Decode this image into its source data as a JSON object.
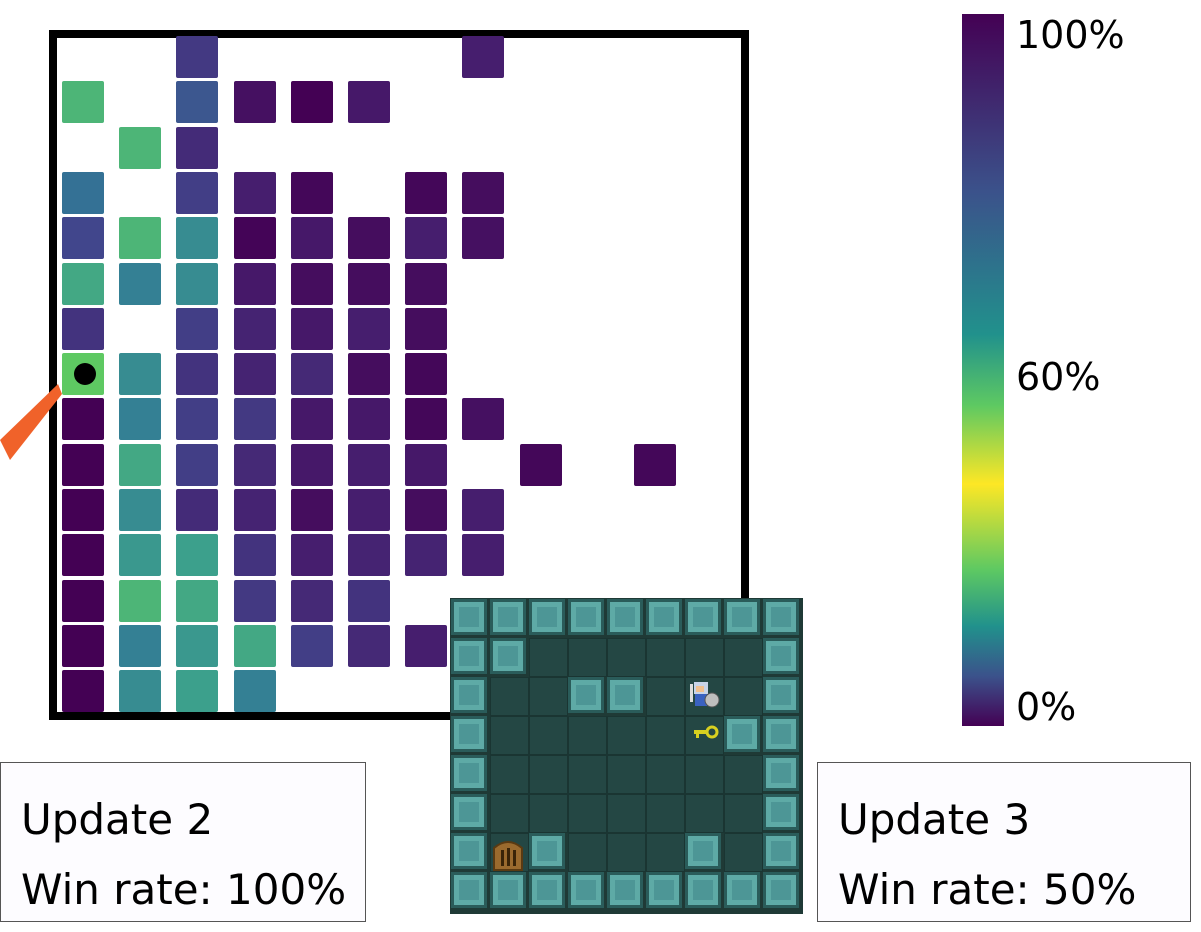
{
  "colorbar": {
    "labels": {
      "max": "100%",
      "mid": "60%",
      "min": "0%"
    }
  },
  "update_left": {
    "title": "Update 2",
    "win_rate": "Win rate: 100%"
  },
  "update_right": {
    "title": "Update 3",
    "win_rate": "Win rate: 50%"
  },
  "heatmap": {
    "note": "Each cell value is the win rate (0-100%) shown by viridis color.",
    "grid": [
      [
        null,
        null,
        80,
        null,
        null,
        null,
        null,
        90,
        null,
        null,
        null
      ],
      [
        45,
        null,
        70,
        95,
        100,
        92,
        null,
        null,
        null,
        null,
        null
      ],
      [
        null,
        45,
        85,
        null,
        null,
        null,
        null,
        null,
        null,
        null,
        null
      ],
      [
        62,
        null,
        78,
        90,
        98,
        null,
        98,
        96,
        null,
        null,
        null
      ],
      [
        75,
        45,
        55,
        99,
        92,
        96,
        90,
        95,
        null,
        null,
        null
      ],
      [
        48,
        58,
        55,
        92,
        96,
        96,
        96,
        null,
        null,
        null,
        null
      ],
      [
        82,
        null,
        78,
        88,
        92,
        90,
        96,
        null,
        null,
        null,
        null
      ],
      [
        40,
        55,
        82,
        88,
        86,
        96,
        98,
        null,
        null,
        null,
        null
      ],
      [
        100,
        58,
        78,
        80,
        92,
        92,
        98,
        95,
        null,
        null,
        null
      ],
      [
        100,
        48,
        78,
        86,
        92,
        90,
        92,
        null,
        98,
        null,
        98
      ],
      [
        100,
        55,
        85,
        88,
        96,
        90,
        96,
        90,
        null,
        null,
        null
      ],
      [
        100,
        52,
        50,
        82,
        90,
        88,
        88,
        90,
        null,
        null,
        null
      ],
      [
        100,
        45,
        48,
        80,
        86,
        82,
        null,
        null,
        null,
        null,
        null
      ],
      [
        100,
        58,
        52,
        48,
        78,
        86,
        90,
        null,
        null,
        null,
        null
      ],
      [
        100,
        55,
        50,
        58,
        null,
        null,
        null,
        null,
        null,
        null,
        null
      ]
    ]
  },
  "game_icons": {
    "agent": "knight-icon",
    "key": "key-icon",
    "door": "door-icon"
  }
}
